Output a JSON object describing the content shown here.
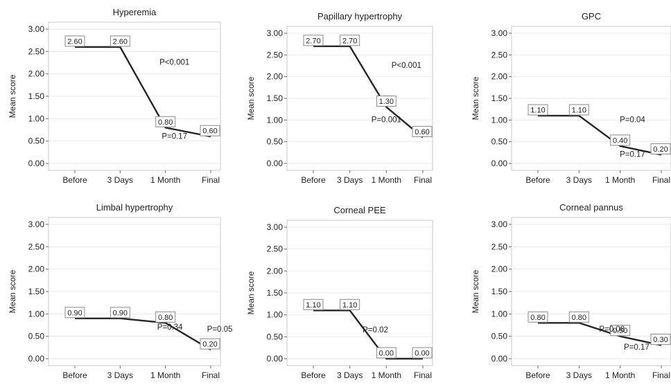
{
  "figure": {
    "ylabel": "Mean score",
    "categories": [
      "Before",
      "3 Days",
      "1 Month",
      "Final"
    ]
  },
  "chart_data": [
    {
      "type": "line",
      "title": "Hyperemia",
      "ylabel": "Mean score",
      "categories": [
        "Before",
        "3 Days",
        "1 Month",
        "Final"
      ],
      "values": [
        2.6,
        2.6,
        0.8,
        0.6
      ],
      "data_labels": [
        "2.60",
        "2.60",
        "0.80",
        "0.60"
      ],
      "yticks": [
        "0.00",
        "0.50",
        "1.00",
        "1.50",
        "2.00",
        "2.50",
        "3.00"
      ],
      "ylim": [
        0,
        3
      ],
      "annotations": [
        {
          "text": "P<0.001",
          "x": 2.2,
          "y": 2.2
        },
        {
          "text": "P=0.17",
          "x": 2.2,
          "y": 0.55
        }
      ]
    },
    {
      "type": "line",
      "title": "Papillary hypertrophy",
      "ylabel": "Mean score",
      "categories": [
        "Before",
        "3 Days",
        "1 Month",
        "Final"
      ],
      "values": [
        2.7,
        2.7,
        1.3,
        0.6
      ],
      "data_labels": [
        "2.70",
        "2.70",
        "1.30",
        "0.60"
      ],
      "yticks": [
        "0.00",
        "0.50",
        "1.00",
        "1.50",
        "2.00",
        "2.50",
        "3.00"
      ],
      "ylim": [
        0,
        3
      ],
      "annotations": [
        {
          "text": "P<0.001",
          "x": 2.55,
          "y": 2.2
        },
        {
          "text": "P=0.001",
          "x": 2.0,
          "y": 0.95
        }
      ]
    },
    {
      "type": "line",
      "title": "GPC",
      "ylabel": "Mean score",
      "categories": [
        "Before",
        "3 Days",
        "1 Month",
        "Final"
      ],
      "values": [
        1.1,
        1.1,
        0.4,
        0.2
      ],
      "data_labels": [
        "1.10",
        "1.10",
        "0.40",
        "0.20"
      ],
      "yticks": [
        "0.00",
        "0.50",
        "1.00",
        "1.50",
        "2.00",
        "2.50",
        "3.00"
      ],
      "ylim": [
        0,
        3
      ],
      "annotations": [
        {
          "text": "P=0.04",
          "x": 2.3,
          "y": 0.95
        },
        {
          "text": "P=0.17",
          "x": 2.3,
          "y": 0.15
        }
      ]
    },
    {
      "type": "line",
      "title": "Limbal hypertrophy",
      "ylabel": "Mean score",
      "categories": [
        "Before",
        "3 Days",
        "1 Month",
        "Final"
      ],
      "values": [
        0.9,
        0.9,
        0.8,
        0.2
      ],
      "data_labels": [
        "0.90",
        "0.90",
        "0.80",
        "0.20"
      ],
      "yticks": [
        "0.00",
        "0.50",
        "1.00",
        "1.50",
        "2.00",
        "2.50",
        "3.00"
      ],
      "ylim": [
        0,
        3
      ],
      "annotations": [
        {
          "text": "P=0.34",
          "x": 2.1,
          "y": 0.65
        },
        {
          "text": "P=0.05",
          "x": 3.2,
          "y": 0.6
        }
      ]
    },
    {
      "type": "line",
      "title": "Corneal PEE",
      "ylabel": "Mean score",
      "categories": [
        "Before",
        "3 Days",
        "1 Month",
        "Final"
      ],
      "values": [
        1.1,
        1.1,
        0.0,
        0.0
      ],
      "data_labels": [
        "1.10",
        "1.10",
        "0.00",
        "0.00"
      ],
      "yticks": [
        "0.00",
        "0.50",
        "1.00",
        "1.50",
        "2.00",
        "2.50",
        "3.00"
      ],
      "ylim": [
        0,
        3
      ],
      "annotations": [
        {
          "text": "P=0.02",
          "x": 1.7,
          "y": 0.6
        }
      ]
    },
    {
      "type": "line",
      "title": "Corneal pannus",
      "ylabel": "Mean score",
      "categories": [
        "Before",
        "3 Days",
        "1 Month",
        "Final"
      ],
      "values": [
        0.8,
        0.8,
        0.5,
        0.3
      ],
      "data_labels": [
        "0.80",
        "0.80",
        "0.50",
        "0.30"
      ],
      "yticks": [
        "0.00",
        "0.50",
        "1.00",
        "1.50",
        "2.00",
        "2.50",
        "3.00"
      ],
      "ylim": [
        0,
        3
      ],
      "annotations": [
        {
          "text": "P=0.08",
          "x": 1.8,
          "y": 0.6
        },
        {
          "text": "P=0.17",
          "x": 2.4,
          "y": 0.2
        }
      ]
    }
  ]
}
